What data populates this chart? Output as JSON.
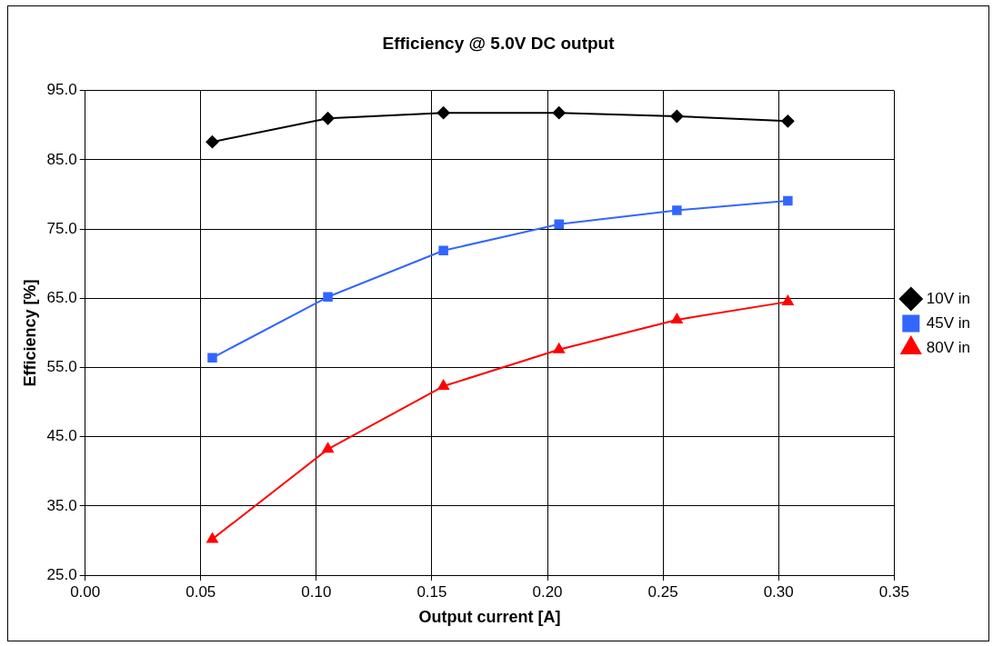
{
  "chart_data": {
    "type": "line",
    "title": "Efficiency @ 5.0V DC output",
    "xlabel": "Output current [A]",
    "ylabel": "Efficiency [%]",
    "xlim": [
      0,
      0.35
    ],
    "xticks": [
      {
        "value": 0,
        "label": "0.00"
      },
      {
        "value": 0.05,
        "label": "0.05"
      },
      {
        "value": 0.1,
        "label": "0.10"
      },
      {
        "value": 0.15,
        "label": "0.15"
      },
      {
        "value": 0.2,
        "label": "0.20"
      },
      {
        "value": 0.25,
        "label": "0.25"
      },
      {
        "value": 0.3,
        "label": "0.30"
      },
      {
        "value": 0.35,
        "label": "0.35"
      }
    ],
    "ylim": [
      25,
      95
    ],
    "yticks": [
      {
        "value": 25,
        "label": "25.0"
      },
      {
        "value": 35,
        "label": "35.0"
      },
      {
        "value": 45,
        "label": "45.0"
      },
      {
        "value": 55,
        "label": "55.0"
      },
      {
        "value": 65,
        "label": "65.0"
      },
      {
        "value": 75,
        "label": "75.0"
      },
      {
        "value": 85,
        "label": "85.0"
      },
      {
        "value": 95,
        "label": "95.0"
      }
    ],
    "x": [
      0.055,
      0.105,
      0.155,
      0.205,
      0.256,
      0.304
    ],
    "series": [
      {
        "name": "10V in",
        "color": "#000000",
        "marker": "diamond",
        "values": [
          87.6,
          91.0,
          91.8,
          91.8,
          91.3,
          90.6
        ]
      },
      {
        "name": "45V in",
        "color": "#3366ff",
        "marker": "square",
        "values": [
          56.4,
          65.2,
          71.9,
          75.7,
          77.7,
          79.1
        ]
      },
      {
        "name": "80V in",
        "color": "#ff0000",
        "marker": "triangle",
        "values": [
          30.2,
          43.2,
          52.3,
          57.6,
          61.9,
          64.5
        ]
      }
    ],
    "grid": true,
    "legend": "right"
  }
}
